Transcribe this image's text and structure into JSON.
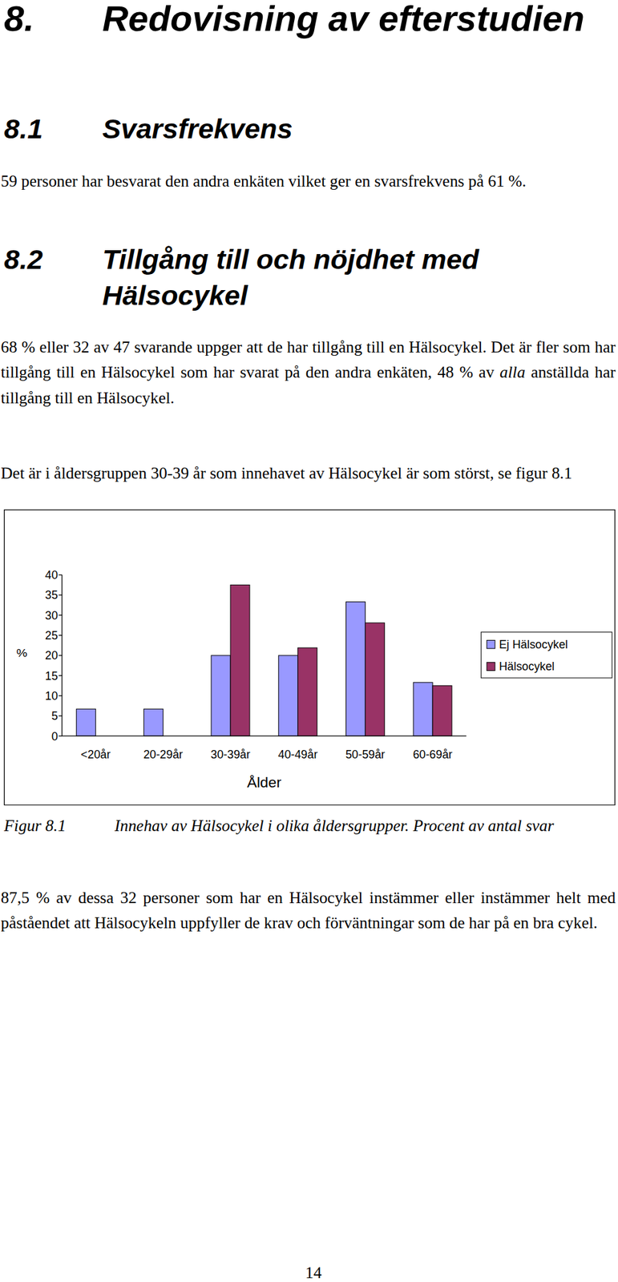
{
  "heading": {
    "number": "8.",
    "title": "Redovisning av efterstudien"
  },
  "sections": [
    {
      "number": "8.1",
      "title": "Svarsfrekvens",
      "paragraphs": [
        {
          "runs": [
            {
              "text": "59 personer har besvarat den andra enkäten vilket ger en svarsfrekvens på 61 %."
            }
          ]
        }
      ]
    },
    {
      "number": "8.2",
      "title": "Tillgång till och nöjdhet med Hälsocykel",
      "paragraphs": [
        {
          "runs": [
            {
              "text": "68 % eller 32 av 47 svarande uppger att de har tillgång till en Hälsocykel. Det är fler som har tillgång till en Hälsocykel som har svarat på den andra enkäten, 48 % av "
            },
            {
              "text": "alla",
              "italic": true
            },
            {
              "text": " anställda har tillgång till en Hälsocykel."
            }
          ]
        },
        {
          "runs": [
            {
              "text": "Det är i åldersgruppen 30-39 år som innehavet av Hälsocykel är som störst, se figur 8.1"
            }
          ]
        }
      ]
    }
  ],
  "chart_data": {
    "type": "bar",
    "y_label": "%",
    "x_label": "Ålder",
    "categories": [
      "<20år",
      "20-29år",
      "30-39år",
      "40-49år",
      "50-59år",
      "60-69år"
    ],
    "series": [
      {
        "name": "Ej Hälsocykel",
        "color": "#9999ff",
        "values": [
          6.7,
          6.7,
          20,
          20,
          33.3,
          13.3
        ]
      },
      {
        "name": "Hälsocykel",
        "color": "#993366",
        "values": [
          0,
          0,
          37.5,
          21.9,
          28.1,
          12.5
        ]
      }
    ],
    "ylim": [
      0,
      40
    ],
    "yticks": [
      0,
      5,
      10,
      15,
      20,
      25,
      30,
      35,
      40
    ],
    "grid": false,
    "legend": "right"
  },
  "caption": {
    "label": "Figur 8.1",
    "text": "Innehav av Hälsocykel i olika åldersgrupper. Procent av antal svar"
  },
  "closing": {
    "runs": [
      {
        "text": "87,5 % av dessa 32 personer som har en Hälsocykel instämmer eller instämmer helt med påståendet att Hälsocykeln uppfyller de krav och förväntningar som de har på en bra cykel."
      }
    ]
  },
  "page_number": "14"
}
